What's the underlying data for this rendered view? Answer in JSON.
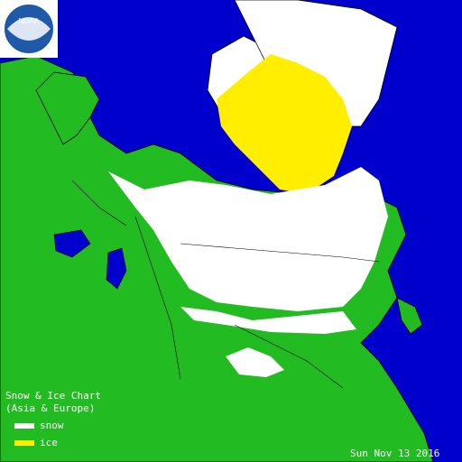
{
  "logo": {
    "text": "NOAA"
  },
  "legend": {
    "title_line1": "Snow & Ice Chart",
    "title_line2": "(Asia & Europe)",
    "items": [
      {
        "label": "snow",
        "color": "#ffffff"
      },
      {
        "label": "ice",
        "color": "#ffee00"
      }
    ]
  },
  "date": "Sun Nov 13   2016",
  "colors": {
    "water": "#0000cc",
    "land": "#22bb22",
    "snow": "#ffffff",
    "ice": "#ffee00",
    "border": "#000000"
  }
}
